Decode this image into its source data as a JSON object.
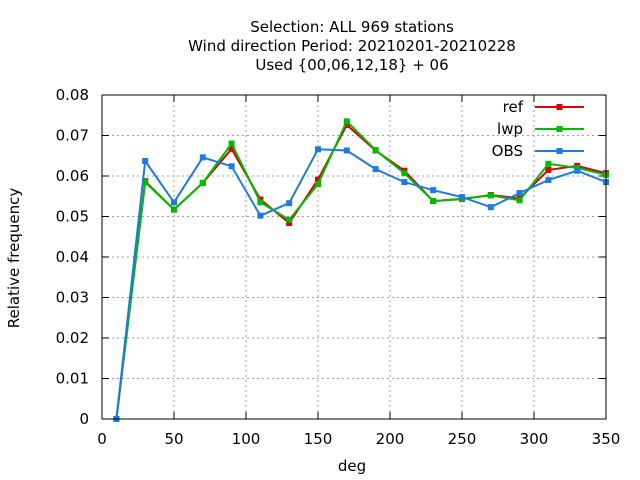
{
  "chart_data": {
    "type": "line",
    "title_lines": [
      "Selection: ALL    969 stations",
      "Wind direction  Period: 20210201-20210228",
      "Used {00,06,12,18} + 06"
    ],
    "xlabel": "deg",
    "ylabel": "Relative frequency",
    "xlim": [
      0,
      350
    ],
    "ylim": [
      0,
      0.08
    ],
    "xticks": [
      "0",
      "50",
      "100",
      "150",
      "200",
      "250",
      "300",
      "350"
    ],
    "yticks": [
      "0",
      "0.01",
      "0.02",
      "0.03",
      "0.04",
      "0.05",
      "0.06",
      "0.07",
      "0.08"
    ],
    "grid": true,
    "legend_position": "top-right",
    "x": [
      10,
      30,
      50,
      70,
      90,
      110,
      130,
      150,
      170,
      190,
      210,
      230,
      250,
      270,
      290,
      310,
      330,
      350
    ],
    "series": [
      {
        "name": "ref",
        "color": "#dd0000",
        "values": [
          0.0,
          0.0587,
          0.0517,
          0.0583,
          0.0667,
          0.0542,
          0.0484,
          0.0591,
          0.0726,
          0.0663,
          0.0613,
          0.0538,
          0.0543,
          0.0553,
          0.0545,
          0.0615,
          0.0625,
          0.0607
        ]
      },
      {
        "name": "lwp",
        "color": "#00bb00",
        "values": [
          0.0,
          0.0585,
          0.0517,
          0.0583,
          0.068,
          0.0535,
          0.0492,
          0.058,
          0.0735,
          0.0664,
          0.0607,
          0.0538,
          0.0544,
          0.0552,
          0.054,
          0.063,
          0.062,
          0.0603
        ]
      },
      {
        "name": "OBS",
        "color": "#1e7bdc",
        "values": [
          0.0,
          0.0637,
          0.0535,
          0.0646,
          0.0624,
          0.0502,
          0.0533,
          0.0666,
          0.0663,
          0.0617,
          0.0585,
          0.0565,
          0.0548,
          0.0523,
          0.0558,
          0.059,
          0.0613,
          0.0585
        ]
      }
    ]
  }
}
